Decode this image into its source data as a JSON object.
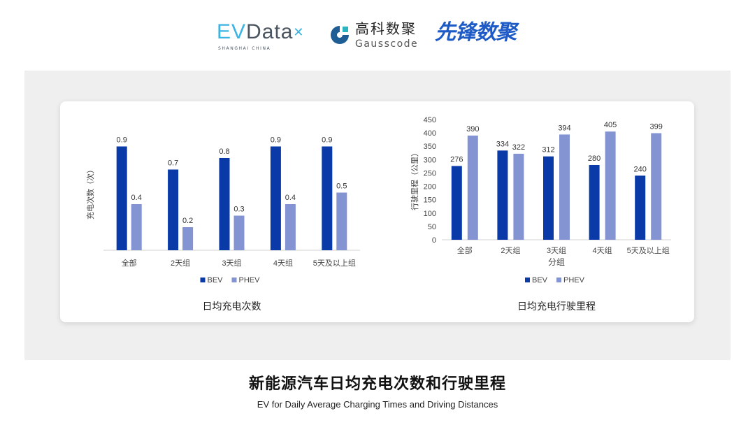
{
  "logos": {
    "evdata": {
      "ev": "EV",
      "rest": "Data",
      "sub": "SHANGHAI CHINA"
    },
    "gausscode": {
      "cn": "高科数聚",
      "en": "Gausscode"
    },
    "xianfeng": "先锋数聚"
  },
  "colors": {
    "bev": "#0a3aa8",
    "phev": "#8494d2",
    "panel": "#efefef"
  },
  "chart_data": [
    {
      "type": "bar",
      "title": "日均充电次数",
      "ylabel": "充电次数（次）",
      "xlabel": "",
      "categories": [
        "全部",
        "2天组",
        "3天组",
        "4天组",
        "5天及以上组"
      ],
      "series": [
        {
          "name": "BEV",
          "values": [
            0.9,
            0.7,
            0.8,
            0.9,
            0.9
          ]
        },
        {
          "name": "PHEV",
          "values": [
            0.4,
            0.2,
            0.3,
            0.4,
            0.5
          ]
        }
      ],
      "ylim": [
        0,
        1
      ],
      "legend": "bottom",
      "grid": false
    },
    {
      "type": "bar",
      "title": "日均充电行驶里程",
      "ylabel": "行驶里程（公里）",
      "xlabel": "分组",
      "categories": [
        "全部",
        "2天组",
        "3天组",
        "4天组",
        "5天及以上组"
      ],
      "series": [
        {
          "name": "BEV",
          "values": [
            276,
            334,
            312,
            280,
            240
          ]
        },
        {
          "name": "PHEV",
          "values": [
            390,
            322,
            394,
            405,
            399
          ]
        }
      ],
      "ylim": [
        0,
        450
      ],
      "yticks": [
        0,
        50,
        100,
        150,
        200,
        250,
        300,
        350,
        400,
        450
      ],
      "legend": "bottom",
      "grid": false
    }
  ],
  "footer": {
    "title": "新能源汽车日均充电次数和行驶里程",
    "subtitle": "EV for Daily Average Charging Times and Driving Distances"
  }
}
